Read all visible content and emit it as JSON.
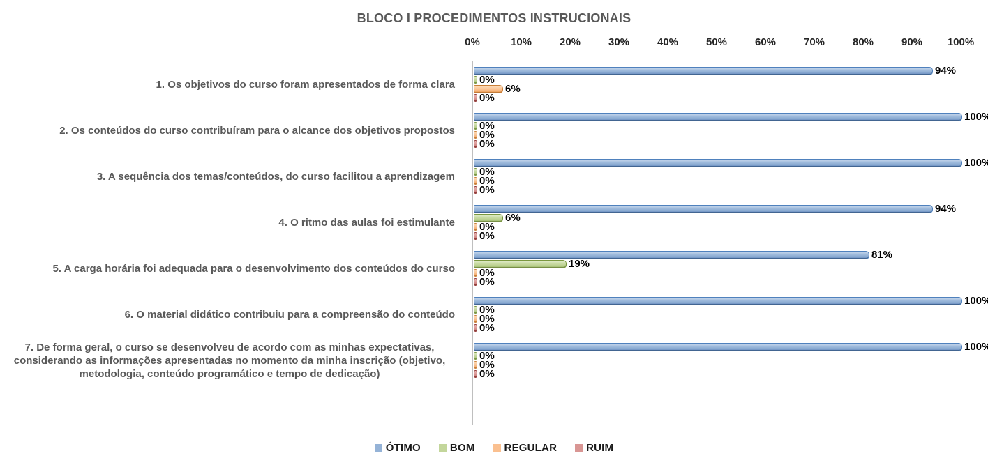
{
  "title": "BLOCO I PROCEDIMENTOS INSTRUCIONAIS",
  "chart_data": {
    "type": "bar",
    "orientation": "horizontal",
    "title": "BLOCO I PROCEDIMENTOS INSTRUCIONAIS",
    "xlim": [
      0,
      100
    ],
    "x_ticks": [
      "0%",
      "10%",
      "20%",
      "30%",
      "40%",
      "50%",
      "60%",
      "70%",
      "80%",
      "90%",
      "100%"
    ],
    "grid": false,
    "legend_position": "bottom",
    "data_labels": true,
    "value_suffix": "%",
    "categories": [
      "1. Os objetivos do curso foram apresentados de forma clara",
      "2. Os conteúdos do curso contribuíram para o alcance dos objetivos propostos",
      "3. A sequência dos temas/conteúdos, do curso facilitou a aprendizagem",
      "4. O ritmo das aulas foi estimulante",
      "5. A carga horária foi adequada para o desenvolvimento dos conteúdos do curso",
      "6. O material didático contribuiu para a compreensão do conteúdo",
      "7. De forma geral, o curso se desenvolveu de acordo com as minhas expectativas, considerando as informações apresentadas no momento da minha inscrição (objetivo, metodologia, conteúdo programático e tempo de dedicação)"
    ],
    "series": [
      {
        "name": "ÓTIMO",
        "color": "#95b3d7",
        "values": [
          94,
          100,
          100,
          94,
          81,
          100,
          100
        ]
      },
      {
        "name": "BOM",
        "color": "#c3d69b",
        "values": [
          0,
          0,
          0,
          6,
          19,
          0,
          0
        ]
      },
      {
        "name": "REGULAR",
        "color": "#fac090",
        "values": [
          6,
          0,
          0,
          0,
          0,
          0,
          0
        ]
      },
      {
        "name": "RUIM",
        "color": "#d99694",
        "values": [
          0,
          0,
          0,
          0,
          0,
          0,
          0
        ]
      }
    ]
  }
}
